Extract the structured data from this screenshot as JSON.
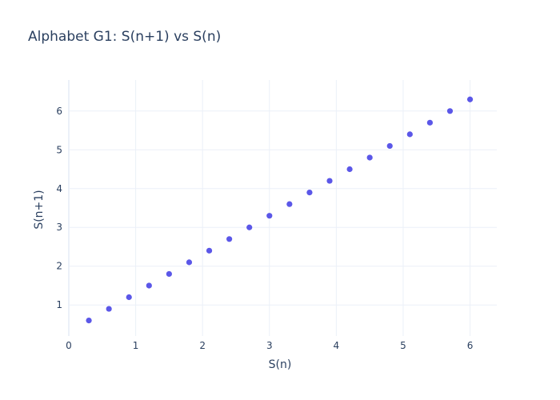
{
  "chart_data": {
    "type": "scatter",
    "title": "Alphabet G1: S(n+1) vs S(n)",
    "xlabel": "S(n)",
    "ylabel": "S(n+1)",
    "xlim": [
      0,
      6.4
    ],
    "ylim": [
      0.2,
      6.8
    ],
    "xticks": [
      0,
      1,
      2,
      3,
      4,
      5,
      6
    ],
    "yticks": [
      1,
      2,
      3,
      4,
      5,
      6
    ],
    "grid": true,
    "marker_color": "#5b57e8",
    "x": [
      0.3,
      0.6,
      0.9,
      1.2,
      1.5,
      1.8,
      2.1,
      2.4,
      2.7,
      3.0,
      3.3,
      3.6,
      3.9,
      4.2,
      4.5,
      4.8,
      5.1,
      5.4,
      5.7,
      6.0
    ],
    "y": [
      0.6,
      0.9,
      1.2,
      1.5,
      1.8,
      2.1,
      2.4,
      2.7,
      3.0,
      3.3,
      3.6,
      3.9,
      4.2,
      4.5,
      4.8,
      5.1,
      5.4,
      5.7,
      6.0,
      6.3
    ]
  }
}
